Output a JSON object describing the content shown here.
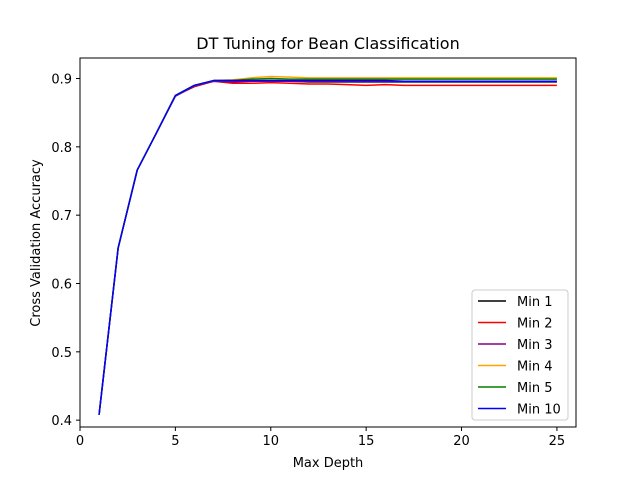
{
  "chart_data": {
    "type": "line",
    "title": "DT Tuning for Bean Classification",
    "xlabel": "Max Depth",
    "ylabel": "Cross Validation Accuracy",
    "xlim": [
      0,
      26
    ],
    "ylim": [
      0.39,
      0.93
    ],
    "xticks": [
      0,
      5,
      10,
      15,
      20,
      25
    ],
    "yticks": [
      0.4,
      0.5,
      0.6,
      0.7,
      0.8,
      0.9
    ],
    "grid": false,
    "legend_position": "lower-right",
    "x": [
      1,
      2,
      3,
      4,
      5,
      6,
      7,
      8,
      9,
      10,
      11,
      12,
      13,
      14,
      15,
      16,
      17,
      18,
      19,
      20,
      21,
      22,
      23,
      24,
      25
    ],
    "series": [
      {
        "name": "Min 1",
        "color": "#000000",
        "values": [
          0.408,
          0.652,
          0.766,
          0.82,
          0.875,
          0.89,
          0.896,
          0.896,
          0.896,
          0.896,
          0.896,
          0.895,
          0.895,
          0.895,
          0.895,
          0.895,
          0.895,
          0.895,
          0.895,
          0.895,
          0.895,
          0.895,
          0.895,
          0.895,
          0.895
        ]
      },
      {
        "name": "Min 2",
        "color": "#ff0000",
        "values": [
          0.408,
          0.652,
          0.766,
          0.82,
          0.875,
          0.888,
          0.896,
          0.893,
          0.893,
          0.894,
          0.893,
          0.892,
          0.892,
          0.891,
          0.89,
          0.891,
          0.89,
          0.89,
          0.89,
          0.89,
          0.89,
          0.89,
          0.89,
          0.89,
          0.89
        ]
      },
      {
        "name": "Min 3",
        "color": "#800080",
        "values": [
          0.408,
          0.652,
          0.766,
          0.82,
          0.874,
          0.889,
          0.896,
          0.895,
          0.896,
          0.896,
          0.896,
          0.896,
          0.896,
          0.896,
          0.896,
          0.896,
          0.896,
          0.896,
          0.896,
          0.896,
          0.896,
          0.896,
          0.896,
          0.896,
          0.896
        ]
      },
      {
        "name": "Min 4",
        "color": "#ffa500",
        "values": [
          0.408,
          0.652,
          0.766,
          0.82,
          0.875,
          0.89,
          0.897,
          0.898,
          0.901,
          0.903,
          0.902,
          0.901,
          0.901,
          0.901,
          0.901,
          0.901,
          0.901,
          0.901,
          0.901,
          0.901,
          0.901,
          0.901,
          0.901,
          0.901,
          0.901
        ]
      },
      {
        "name": "Min 5",
        "color": "#008000",
        "values": [
          0.408,
          0.652,
          0.766,
          0.82,
          0.875,
          0.89,
          0.897,
          0.897,
          0.899,
          0.9,
          0.899,
          0.899,
          0.899,
          0.899,
          0.899,
          0.899,
          0.899,
          0.899,
          0.899,
          0.899,
          0.899,
          0.899,
          0.899,
          0.899,
          0.899
        ]
      },
      {
        "name": "Min 10",
        "color": "#0000ff",
        "values": [
          0.408,
          0.652,
          0.766,
          0.82,
          0.875,
          0.89,
          0.897,
          0.897,
          0.897,
          0.897,
          0.897,
          0.897,
          0.897,
          0.897,
          0.897,
          0.897,
          0.896,
          0.896,
          0.896,
          0.896,
          0.896,
          0.896,
          0.896,
          0.896,
          0.896
        ]
      }
    ]
  }
}
